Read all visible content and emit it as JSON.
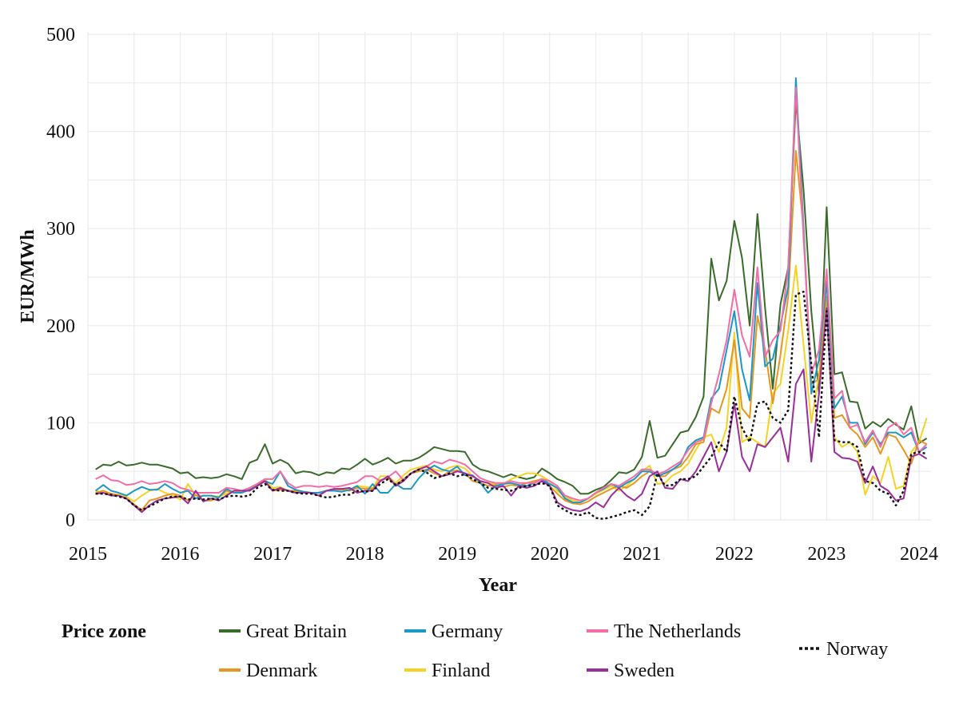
{
  "chart_data": {
    "type": "line",
    "xlabel": "Year",
    "ylabel": "EUR/MWh",
    "xlim": [
      2015,
      2024.1
    ],
    "ylim": [
      0,
      500
    ],
    "x_ticks": [
      2015,
      2016,
      2017,
      2018,
      2019,
      2020,
      2021,
      2022,
      2023,
      2024
    ],
    "y_ticks": [
      0,
      100,
      200,
      300,
      400,
      500
    ],
    "grid": true,
    "legend_title": "Price zone",
    "legend_position": "bottom",
    "x_start": "2015-02",
    "x_step": "monthly",
    "series": [
      {
        "name": "Great Britain",
        "color": "#3a6b2a",
        "dash": "solid",
        "values": [
          52,
          57,
          56,
          60,
          56,
          57,
          59,
          57,
          57,
          55,
          53,
          48,
          49,
          43,
          44,
          43,
          44,
          47,
          45,
          42,
          59,
          62,
          78,
          58,
          62,
          58,
          48,
          50,
          49,
          46,
          49,
          48,
          53,
          52,
          57,
          63,
          57,
          60,
          64,
          58,
          61,
          61,
          64,
          69,
          75,
          73,
          71,
          71,
          70,
          57,
          52,
          50,
          47,
          44,
          47,
          44,
          42,
          44,
          53,
          48,
          42,
          39,
          35,
          27,
          27,
          31,
          34,
          41,
          49,
          48,
          52,
          65,
          102,
          64,
          66,
          78,
          90,
          92,
          106,
          127,
          269,
          226,
          246,
          308,
          270,
          200,
          315,
          218,
          135,
          222,
          260,
          432,
          340,
          215,
          130,
          322,
          150,
          152,
          122,
          121,
          94,
          101,
          96,
          104,
          98,
          93,
          117,
          79,
          84
        ]
      },
      {
        "name": "Denmark",
        "color": "#e8971e",
        "dash": "solid",
        "values": [
          28,
          30,
          27,
          25,
          22,
          16,
          10,
          20,
          22,
          25,
          27,
          25,
          20,
          26,
          20,
          20,
          23,
          30,
          28,
          28,
          32,
          35,
          40,
          30,
          31,
          30,
          30,
          29,
          28,
          28,
          30,
          31,
          31,
          30,
          33,
          32,
          32,
          41,
          43,
          36,
          42,
          48,
          50,
          52,
          48,
          45,
          50,
          51,
          48,
          40,
          38,
          35,
          36,
          34,
          36,
          35,
          38,
          40,
          42,
          35,
          27,
          20,
          17,
          16,
          19,
          24,
          28,
          32,
          35,
          33,
          38,
          45,
          50,
          45,
          45,
          52,
          55,
          65,
          78,
          80,
          115,
          110,
          135,
          185,
          115,
          105,
          210,
          175,
          120,
          170,
          230,
          380,
          300,
          140,
          145,
          230,
          105,
          108,
          95,
          88,
          75,
          85,
          68,
          88,
          85,
          72,
          58,
          82,
          78
        ]
      },
      {
        "name": "Finland",
        "color": "#f5d323",
        "dash": "solid",
        "values": [
          30,
          28,
          27,
          26,
          24,
          19,
          25,
          30,
          32,
          28,
          25,
          21,
          37,
          25,
          25,
          25,
          24,
          27,
          30,
          28,
          33,
          37,
          42,
          33,
          34,
          30,
          29,
          29,
          28,
          28,
          30,
          31,
          32,
          31,
          35,
          34,
          33,
          45,
          45,
          38,
          46,
          52,
          54,
          56,
          52,
          50,
          54,
          56,
          53,
          45,
          40,
          38,
          37,
          37,
          42,
          45,
          48,
          48,
          45,
          40,
          30,
          24,
          20,
          20,
          22,
          27,
          31,
          35,
          30,
          35,
          42,
          50,
          56,
          37,
          38,
          46,
          50,
          58,
          72,
          85,
          88,
          70,
          95,
          193,
          80,
          85,
          80,
          75,
          130,
          140,
          195,
          262,
          180,
          100,
          150,
          215,
          85,
          75,
          80,
          70,
          26,
          45,
          38,
          65,
          32,
          35,
          70,
          80,
          105
        ]
      },
      {
        "name": "Germany",
        "color": "#1c98c7",
        "dash": "solid",
        "values": [
          30,
          36,
          30,
          28,
          25,
          30,
          34,
          31,
          31,
          37,
          32,
          28,
          30,
          22,
          25,
          25,
          23,
          32,
          28,
          28,
          31,
          35,
          40,
          37,
          50,
          35,
          31,
          29,
          28,
          28,
          30,
          30,
          29,
          31,
          35,
          27,
          37,
          28,
          28,
          37,
          32,
          32,
          43,
          51,
          56,
          52,
          50,
          55,
          46,
          46,
          38,
          28,
          35,
          37,
          38,
          36,
          35,
          38,
          42,
          37,
          33,
          22,
          18,
          18,
          22,
          28,
          32,
          37,
          33,
          38,
          42,
          50,
          50,
          45,
          48,
          52,
          58,
          75,
          82,
          85,
          125,
          135,
          175,
          215,
          155,
          123,
          244,
          158,
          166,
          200,
          240,
          455,
          300,
          130,
          165,
          245,
          115,
          127,
          100,
          100,
          78,
          90,
          78,
          90,
          90,
          85,
          90,
          70,
          75
        ]
      },
      {
        "name": "The Netherlands",
        "color": "#f26ea5",
        "dash": "solid",
        "values": [
          42,
          46,
          41,
          40,
          36,
          37,
          40,
          37,
          38,
          40,
          38,
          33,
          31,
          28,
          28,
          28,
          28,
          33,
          32,
          30,
          33,
          37,
          42,
          42,
          50,
          38,
          33,
          35,
          35,
          34,
          35,
          34,
          35,
          37,
          39,
          45,
          45,
          40,
          44,
          50,
          41,
          48,
          52,
          55,
          60,
          58,
          62,
          60,
          57,
          50,
          43,
          40,
          38,
          38,
          40,
          38,
          38,
          38,
          42,
          40,
          35,
          25,
          22,
          20,
          22,
          28,
          33,
          37,
          35,
          40,
          45,
          52,
          52,
          47,
          50,
          55,
          60,
          72,
          80,
          83,
          120,
          150,
          185,
          237,
          190,
          168,
          260,
          168,
          185,
          195,
          260,
          445,
          290,
          150,
          175,
          258,
          125,
          133,
          95,
          98,
          80,
          92,
          75,
          95,
          100,
          88,
          95,
          70,
          78
        ]
      },
      {
        "name": "Sweden",
        "color": "#9c2e9b",
        "dash": "solid",
        "values": [
          27,
          28,
          25,
          25,
          22,
          15,
          8,
          15,
          20,
          22,
          23,
          24,
          17,
          30,
          19,
          22,
          20,
          25,
          30,
          30,
          30,
          35,
          40,
          30,
          33,
          30,
          28,
          28,
          28,
          25,
          30,
          32,
          32,
          33,
          28,
          30,
          30,
          40,
          45,
          35,
          40,
          48,
          52,
          55,
          50,
          45,
          47,
          50,
          48,
          45,
          40,
          38,
          33,
          35,
          25,
          35,
          33,
          35,
          40,
          35,
          18,
          13,
          10,
          9,
          12,
          18,
          13,
          25,
          33,
          25,
          20,
          27,
          45,
          50,
          33,
          32,
          42,
          40,
          50,
          65,
          80,
          50,
          70,
          120,
          65,
          50,
          78,
          75,
          85,
          95,
          60,
          140,
          155,
          60,
          130,
          218,
          70,
          64,
          63,
          60,
          38,
          55,
          35,
          30,
          20,
          22,
          65,
          68,
          63
        ]
      },
      {
        "name": "Norway",
        "color": "#111111",
        "dash": "dotted",
        "values": [
          27,
          27,
          26,
          24,
          22,
          15,
          10,
          14,
          18,
          22,
          24,
          24,
          21,
          22,
          21,
          22,
          21,
          24,
          25,
          24,
          25,
          33,
          37,
          31,
          30,
          30,
          28,
          27,
          27,
          25,
          23,
          24,
          26,
          26,
          30,
          29,
          30,
          37,
          42,
          36,
          41,
          48,
          52,
          49,
          43,
          45,
          48,
          45,
          47,
          42,
          38,
          33,
          32,
          31,
          30,
          33,
          35,
          36,
          38,
          35,
          15,
          10,
          6,
          5,
          8,
          2,
          1,
          3,
          5,
          8,
          10,
          5,
          14,
          48,
          35,
          36,
          42,
          42,
          45,
          55,
          65,
          80,
          70,
          127,
          95,
          80,
          120,
          122,
          105,
          100,
          113,
          232,
          235,
          160,
          85,
          215,
          82,
          80,
          80,
          75,
          40,
          38,
          30,
          27,
          15,
          30,
          68,
          70,
          68
        ]
      }
    ]
  }
}
